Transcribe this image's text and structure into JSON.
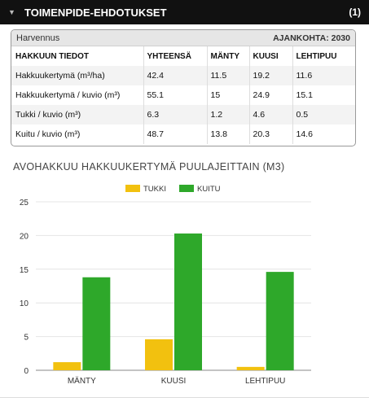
{
  "header": {
    "title": "TOIMENPIDE-EHDOTUKSET",
    "count": "(1)",
    "chevron": "▼"
  },
  "card": {
    "name": "Harvennus",
    "timing": "AJANKOHTA: 2030",
    "columns": [
      "HAKKUUN TIEDOT",
      "YHTEENSÄ",
      "MÄNTY",
      "KUUSI",
      "LEHTIPUU"
    ],
    "rows": [
      {
        "label": "Hakkuukertymä (m³/ha)",
        "values": [
          "42.4",
          "11.5",
          "19.2",
          "11.6"
        ]
      },
      {
        "label": "Hakkuukertymä / kuvio (m³)",
        "values": [
          "55.1",
          "15",
          "24.9",
          "15.1"
        ]
      },
      {
        "label": "Tukki / kuvio (m³)",
        "values": [
          "6.3",
          "1.2",
          "4.6",
          "0.5"
        ]
      },
      {
        "label": "Kuitu / kuvio (m³)",
        "values": [
          "48.7",
          "13.8",
          "20.3",
          "14.6"
        ]
      }
    ]
  },
  "chart_data": {
    "type": "bar",
    "title": "AVOHAKKUU HAKKUUKERTYMÄ PUULAJEITTAIN (M3)",
    "categories": [
      "MÄNTY",
      "KUUSI",
      "LEHTIPUU"
    ],
    "series": [
      {
        "name": "TUKKI",
        "color": "#f2c10f",
        "values": [
          1.2,
          4.6,
          0.5
        ]
      },
      {
        "name": "KUITU",
        "color": "#2ea82a",
        "values": [
          13.8,
          20.3,
          14.6
        ]
      }
    ],
    "ylim": [
      0,
      25
    ],
    "yticks": [
      0,
      5,
      10,
      15,
      20,
      25
    ],
    "grid": true,
    "legend": "top-center"
  }
}
